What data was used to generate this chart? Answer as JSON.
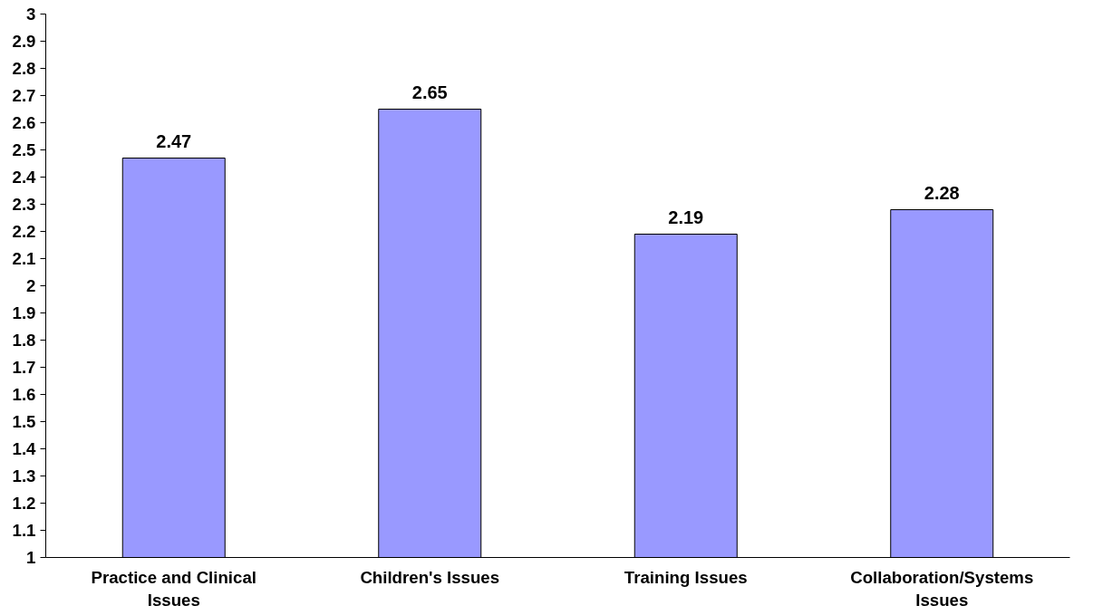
{
  "chart_data": {
    "type": "bar",
    "categories": [
      "Practice and Clinical Issues",
      "Children's Issues",
      "Training Issues",
      "Collaboration/Systems Issues"
    ],
    "values": [
      2.47,
      2.65,
      2.19,
      2.28
    ],
    "color": "#9999ff",
    "ylim": [
      1,
      3
    ],
    "yticks": [
      1,
      1.1,
      1.2,
      1.3,
      1.4,
      1.5,
      1.6,
      1.7,
      1.8,
      1.9,
      2,
      2.1,
      2.2,
      2.3,
      2.4,
      2.5,
      2.6,
      2.7,
      2.8,
      2.9,
      3
    ],
    "data_labels": true,
    "grid": false
  }
}
